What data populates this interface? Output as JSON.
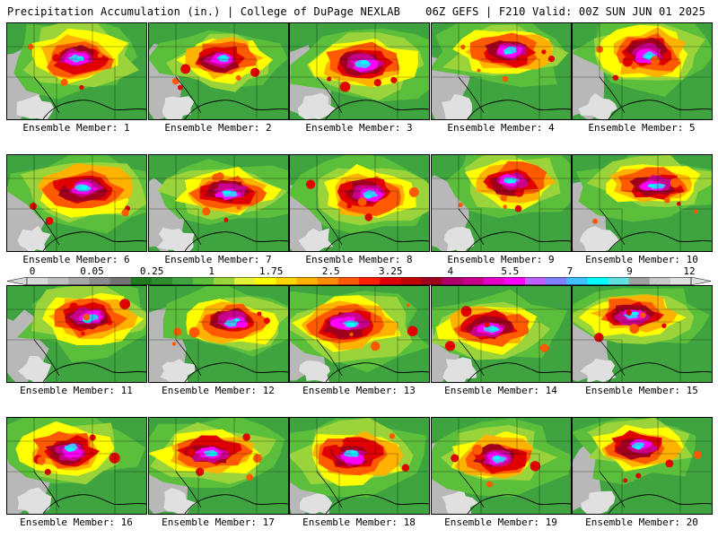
{
  "header": {
    "left": "Precipitation Accumulation (in.) | College of DuPage NEXLAB",
    "right": "06Z GEFS | F210 Valid: 00Z SUN JUN 01 2025"
  },
  "panel_label_prefix": "Ensemble Member: ",
  "members": [
    "1",
    "2",
    "3",
    "4",
    "5",
    "6",
    "7",
    "8",
    "9",
    "10",
    "11",
    "12",
    "13",
    "14",
    "15",
    "16",
    "17",
    "18",
    "19",
    "20"
  ],
  "colorbar": {
    "unit": "in.",
    "tick_labels": [
      "0",
      "0.05",
      "0.25",
      "1",
      "1.75",
      "2.5",
      "3.25",
      "4",
      "5.5",
      "7",
      "9",
      "12"
    ],
    "colors": [
      "#d9d9d9",
      "#bfbfbf",
      "#a6a6a6",
      "#8c8c8c",
      "#737373",
      "#1f7a1f",
      "#2e8b2e",
      "#3fa43f",
      "#5cbf3c",
      "#9ad43a",
      "#e5f23a",
      "#ffff00",
      "#ffd700",
      "#ffb300",
      "#ff8c00",
      "#ff5a00",
      "#ff2000",
      "#e00000",
      "#c00000",
      "#a0001e",
      "#b0006e",
      "#c8008c",
      "#e600c8",
      "#ff00ff",
      "#c060ff",
      "#8080ff",
      "#40c0ff",
      "#00ffff",
      "#60e0e0",
      "#a0a0a0",
      "#c8c8c8",
      "#e0e0e0"
    ]
  }
}
